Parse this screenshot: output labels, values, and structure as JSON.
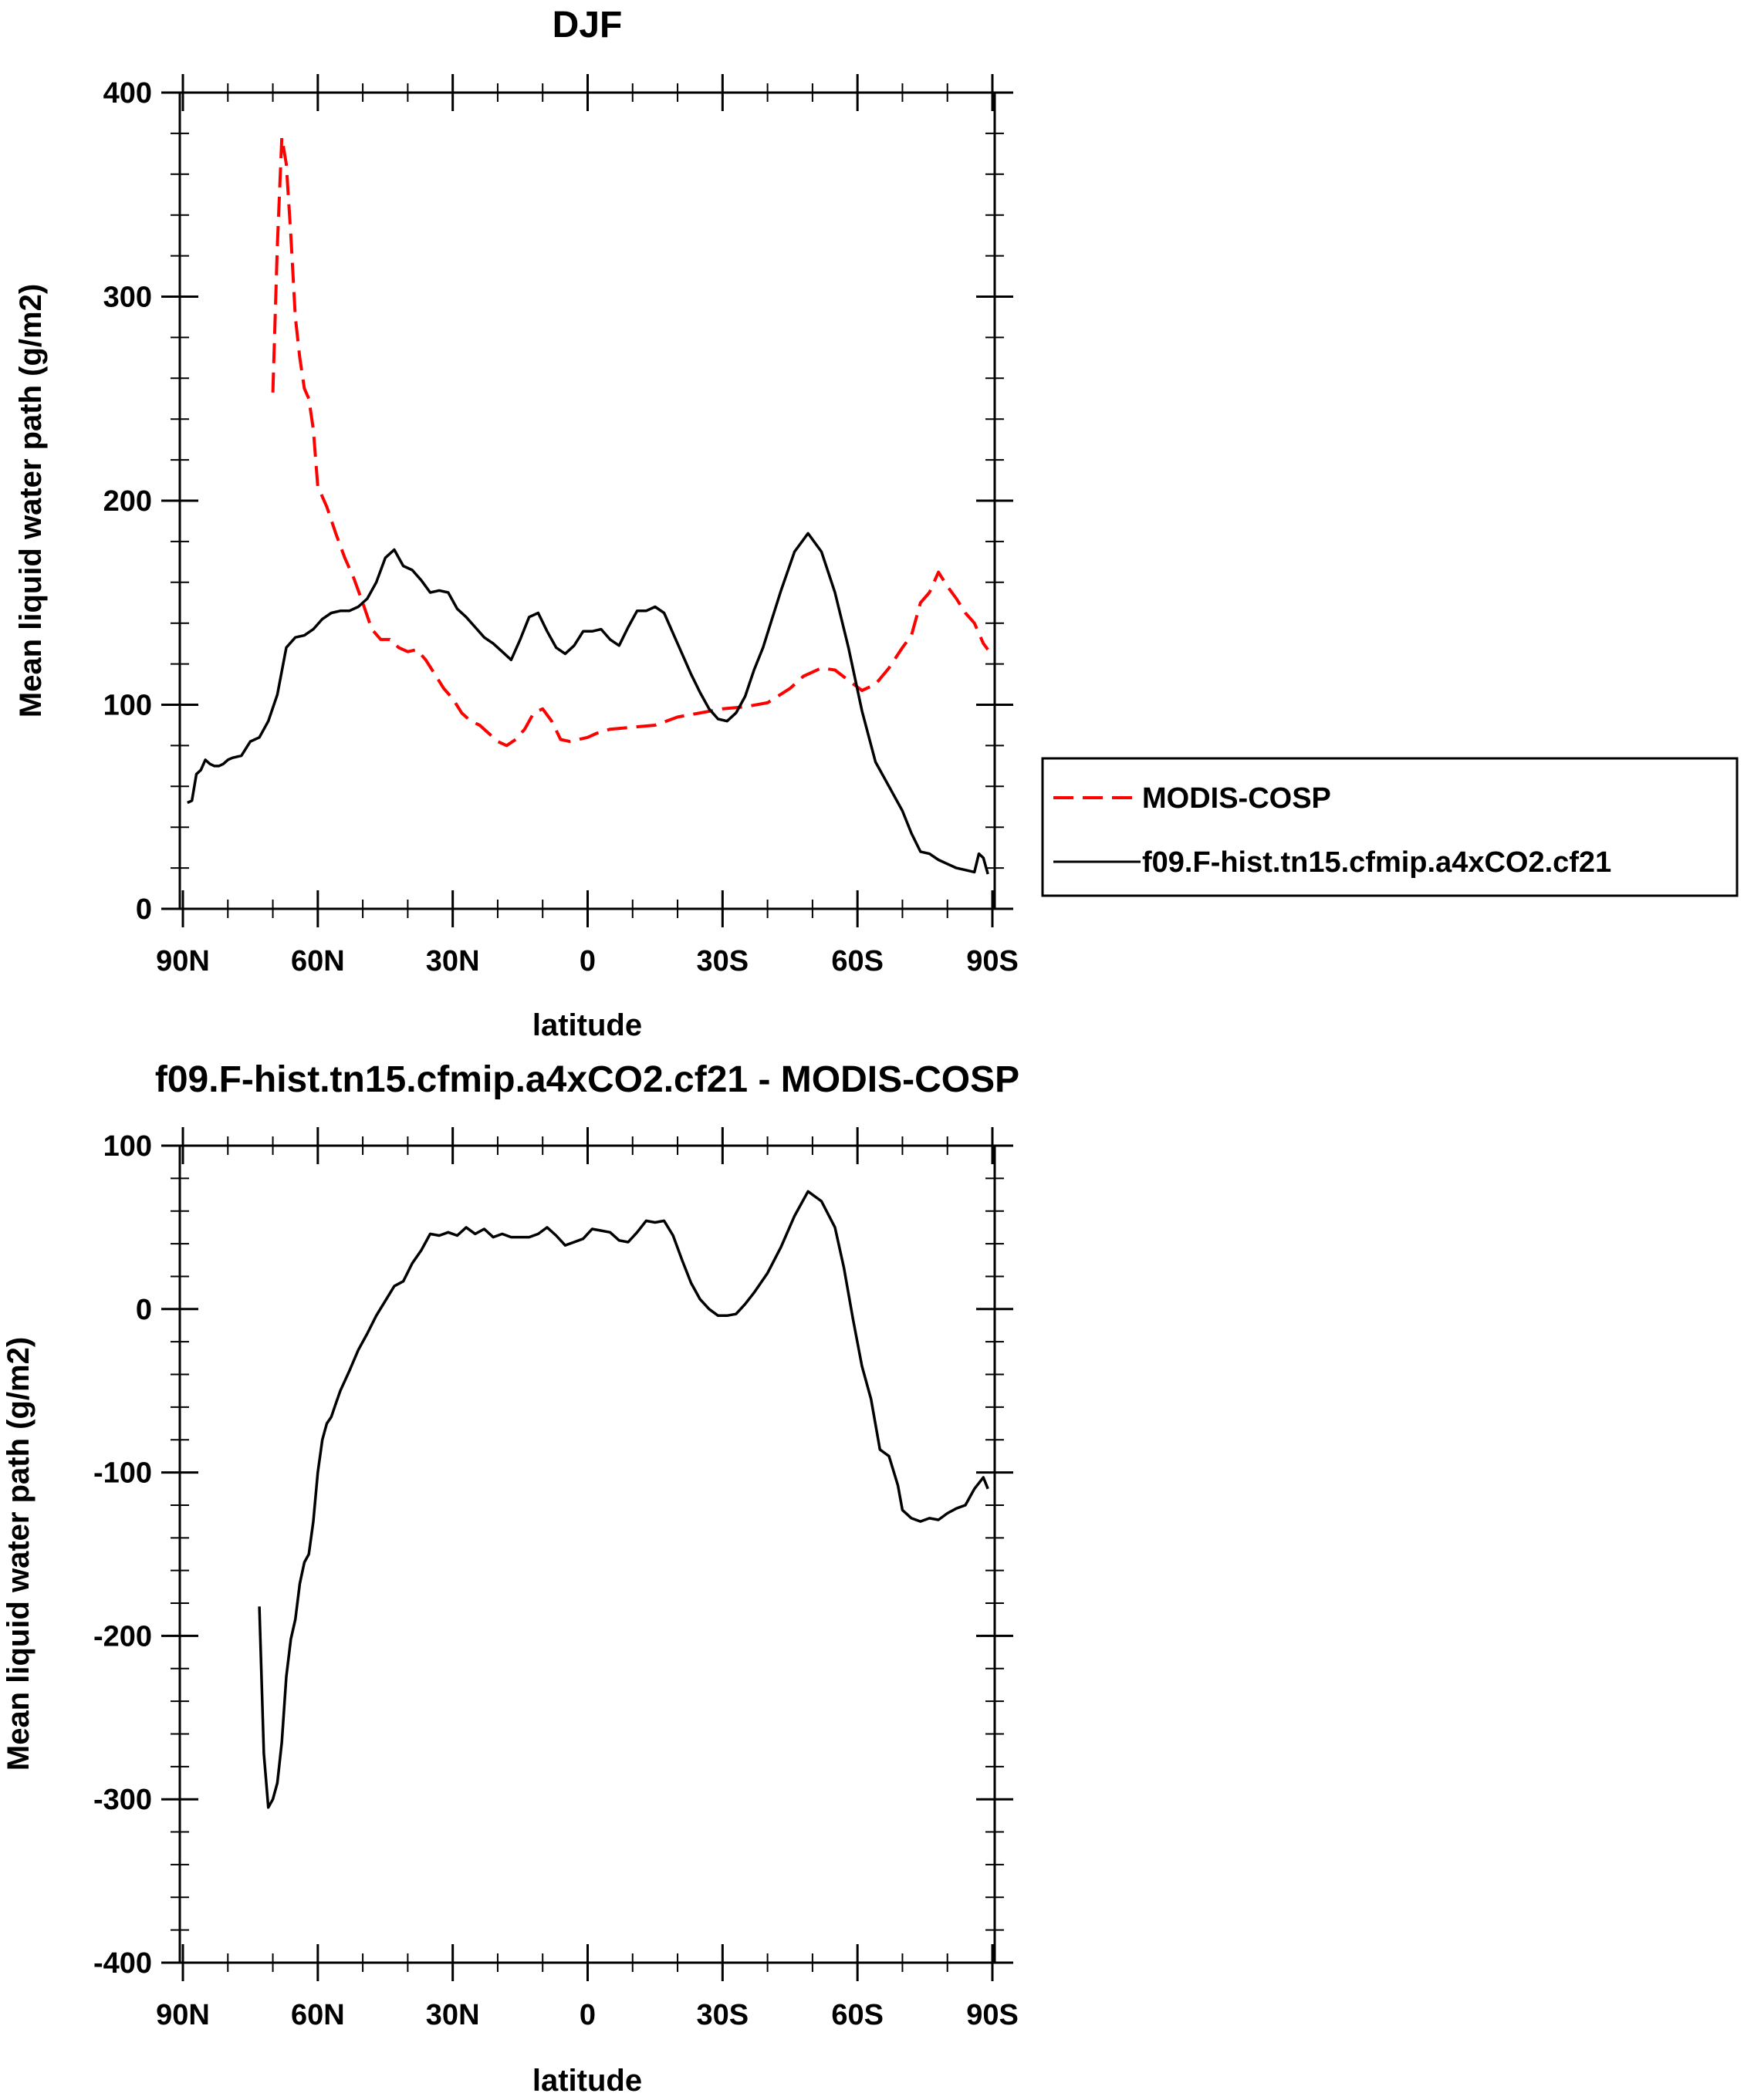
{
  "colors": {
    "model": "#000000",
    "obs": "#ff0000",
    "frame": "#000000",
    "legend_border": "#000000"
  },
  "chart_data": [
    {
      "type": "line",
      "title": "DJF",
      "xlabel": "latitude",
      "ylabel": "Mean liquid water path (g/m2)",
      "xlim": [
        90,
        -90
      ],
      "ylim": [
        0,
        400
      ],
      "xticks": [
        90,
        60,
        30,
        0,
        -30,
        -60,
        -90
      ],
      "xtick_labels": [
        "90N",
        "60N",
        "30N",
        "0",
        "30S",
        "60S",
        "90S"
      ],
      "yticks": [
        0,
        100,
        200,
        300,
        400
      ],
      "ytick_labels": [
        "0",
        "100",
        "200",
        "300",
        "400"
      ],
      "legend": {
        "placement": "right-outside",
        "entries": [
          "MODIS-COSP",
          "f09.F-hist.tn15.cfmip.a4xCO2.cf21"
        ]
      },
      "series": [
        {
          "name": "MODIS-COSP",
          "color": "#ff0000",
          "style": "dashed",
          "x": [
            70,
            69,
            68,
            67,
            66,
            65,
            64,
            63,
            62,
            61,
            60,
            58,
            56,
            54,
            52,
            50,
            48,
            46,
            44,
            42,
            40,
            38,
            36,
            34,
            32,
            30,
            28,
            26,
            24,
            22,
            20,
            18,
            16,
            14,
            12,
            10,
            8,
            6,
            4,
            2,
            0,
            -2,
            -5,
            -10,
            -15,
            -20,
            -25,
            -30,
            -35,
            -40,
            -45,
            -48,
            -52,
            -55,
            -58,
            -61,
            -64,
            -67,
            -70,
            -72,
            -74,
            -76,
            -78,
            -80,
            -82,
            -84,
            -86,
            -88,
            -89
          ],
          "y": [
            253,
            325,
            378,
            365,
            330,
            290,
            270,
            255,
            250,
            235,
            207,
            197,
            184,
            172,
            162,
            150,
            137,
            132,
            132,
            128,
            126,
            127,
            122,
            115,
            108,
            103,
            96,
            92,
            90,
            86,
            82,
            80,
            83,
            88,
            96,
            98,
            92,
            83,
            82,
            83,
            84,
            86,
            88,
            89,
            90,
            94,
            96,
            98,
            99,
            101,
            108,
            114,
            118,
            117,
            112,
            107,
            110,
            118,
            128,
            134,
            150,
            155,
            165,
            158,
            152,
            145,
            140,
            130,
            127
          ]
        },
        {
          "name": "f09.F-hist.tn15.cfmip.a4xCO2.cf21",
          "color": "#000000",
          "style": "solid",
          "x": [
            89,
            88,
            87,
            86,
            85,
            84,
            83,
            82,
            81,
            80,
            79,
            77,
            75,
            73,
            71,
            69,
            67,
            65,
            63,
            61,
            59,
            57,
            55,
            53,
            51,
            49,
            47,
            45,
            43,
            41,
            39,
            37,
            35,
            33,
            31,
            29,
            27,
            25,
            23,
            21,
            19,
            17,
            15,
            13,
            11,
            9,
            7,
            5,
            3,
            1,
            -1,
            -3,
            -5,
            -7,
            -9,
            -11,
            -13,
            -15,
            -17,
            -19,
            -21,
            -23,
            -25,
            -27,
            -29,
            -31,
            -33,
            -35,
            -37,
            -39,
            -41,
            -43,
            -46,
            -49,
            -52,
            -55,
            -58,
            -61,
            -64,
            -67,
            -70,
            -72,
            -74,
            -76,
            -78,
            -80,
            -82,
            -84,
            -86,
            -87,
            -88,
            -89
          ],
          "y": [
            52,
            53,
            66,
            68,
            73,
            71,
            70,
            70,
            71,
            73,
            74,
            75,
            82,
            84,
            92,
            105,
            128,
            133,
            134,
            137,
            142,
            145,
            146,
            146,
            148,
            152,
            160,
            172,
            176,
            168,
            166,
            161,
            155,
            156,
            155,
            147,
            143,
            138,
            133,
            130,
            126,
            122,
            132,
            143,
            145,
            136,
            128,
            125,
            129,
            136,
            136,
            137,
            132,
            129,
            138,
            146,
            146,
            148,
            145,
            135,
            125,
            115,
            106,
            98,
            93,
            92,
            96,
            104,
            117,
            128,
            142,
            156,
            175,
            184,
            175,
            155,
            128,
            97,
            72,
            60,
            48,
            37,
            28,
            27,
            24,
            22,
            20,
            19,
            18,
            27,
            25,
            17
          ]
        }
      ]
    },
    {
      "type": "line",
      "title": "f09.F-hist.tn15.cfmip.a4xCO2.cf21 - MODIS-COSP",
      "xlabel": "latitude",
      "ylabel": "Mean liquid water path (g/m2)",
      "xlim": [
        90,
        -90
      ],
      "ylim": [
        -400,
        100
      ],
      "xticks": [
        90,
        60,
        30,
        0,
        -30,
        -60,
        -90
      ],
      "xtick_labels": [
        "90N",
        "60N",
        "30N",
        "0",
        "30S",
        "60S",
        "90S"
      ],
      "yticks": [
        -400,
        -300,
        -200,
        -100,
        0,
        100
      ],
      "ytick_labels": [
        "-400",
        "-300",
        "-200",
        "-100",
        "0",
        "100"
      ],
      "series": [
        {
          "color": "#000000",
          "style": "solid",
          "x": [
            73,
            72,
            71,
            70,
            69,
            68,
            67,
            66,
            65,
            64,
            63,
            62,
            61,
            60,
            59,
            58,
            57,
            56,
            55,
            53,
            51,
            49,
            47,
            45,
            43,
            41,
            39,
            37,
            35,
            33,
            31,
            29,
            27,
            25,
            23,
            21,
            19,
            17,
            15,
            13,
            11,
            9,
            7,
            5,
            3,
            1,
            -1,
            -3,
            -5,
            -7,
            -9,
            -11,
            -13,
            -15,
            -17,
            -19,
            -21,
            -23,
            -25,
            -27,
            -29,
            -31,
            -33,
            -35,
            -37,
            -40,
            -43,
            -46,
            -49,
            -52,
            -55,
            -57,
            -59,
            -61,
            -63,
            -65,
            -67,
            -69,
            -70,
            -72,
            -74,
            -76,
            -78,
            -80,
            -82,
            -84,
            -86,
            -88,
            -89
          ],
          "y": [
            -182,
            -272,
            -305,
            -300,
            -290,
            -265,
            -225,
            -202,
            -190,
            -168,
            -155,
            -150,
            -130,
            -100,
            -80,
            -70,
            -66,
            -58,
            -50,
            -38,
            -25,
            -15,
            -4,
            5,
            14,
            17,
            28,
            36,
            46,
            45,
            47,
            45,
            50,
            46,
            49,
            44,
            46,
            44,
            44,
            44,
            46,
            50,
            45,
            39,
            41,
            43,
            49,
            48,
            47,
            42,
            41,
            47,
            54,
            53,
            54,
            45,
            30,
            16,
            6,
            0,
            -4,
            -4,
            -3,
            3,
            10,
            22,
            38,
            57,
            72,
            66,
            50,
            25,
            -6,
            -35,
            -55,
            -86,
            -90,
            -108,
            -123,
            -128,
            -130,
            -128,
            -129,
            -125,
            -122,
            -120,
            -110,
            -103,
            -110
          ]
        }
      ]
    }
  ]
}
